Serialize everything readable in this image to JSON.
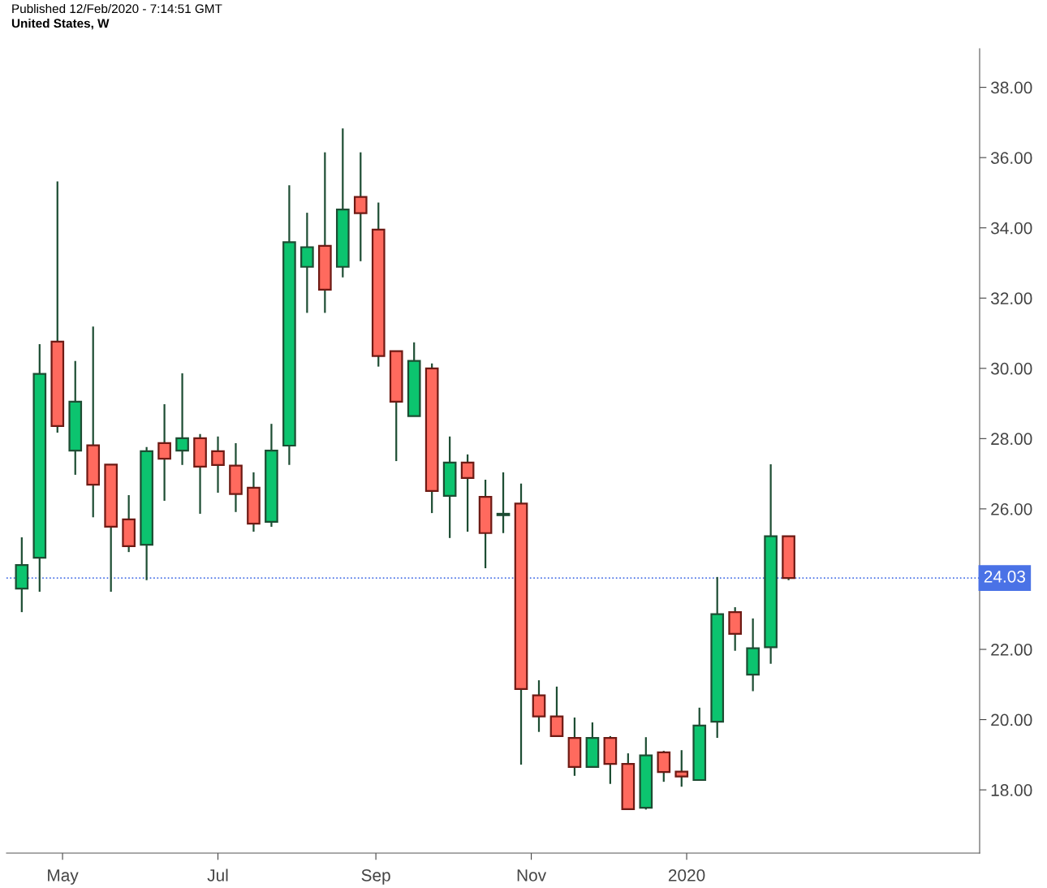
{
  "chart_data": {
    "type": "candlestick",
    "title": "United States, W",
    "annotations": [
      "Published 12/Feb/2020 - 7:14:51 GMT"
    ],
    "x": [
      "2019-04-15",
      "2019-04-22",
      "2019-04-29",
      "2019-05-06",
      "2019-05-13",
      "2019-05-20",
      "2019-05-27",
      "2019-06-03",
      "2019-06-10",
      "2019-06-17",
      "2019-06-24",
      "2019-07-01",
      "2019-07-08",
      "2019-07-15",
      "2019-07-22",
      "2019-07-29",
      "2019-08-05",
      "2019-08-12",
      "2019-08-19",
      "2019-08-26",
      "2019-09-02",
      "2019-09-09",
      "2019-09-16",
      "2019-09-23",
      "2019-09-30",
      "2019-10-07",
      "2019-10-14",
      "2019-10-21",
      "2019-10-28",
      "2019-11-04",
      "2019-11-11",
      "2019-11-18",
      "2019-11-25",
      "2019-12-02",
      "2019-12-09",
      "2019-12-16",
      "2019-12-23",
      "2019-12-30",
      "2020-01-06",
      "2020-01-13",
      "2020-01-20",
      "2020-01-27",
      "2020-02-03",
      "2020-02-10"
    ],
    "ohlc": [
      [
        23.73,
        25.19,
        23.06,
        24.4
      ],
      [
        24.61,
        30.69,
        23.64,
        29.84
      ],
      [
        30.76,
        35.32,
        28.17,
        28.36
      ],
      [
        27.66,
        30.21,
        26.97,
        29.05
      ],
      [
        27.81,
        31.19,
        25.76,
        26.69
      ],
      [
        27.26,
        27.26,
        23.64,
        25.49
      ],
      [
        25.7,
        26.39,
        24.77,
        24.94
      ],
      [
        24.98,
        27.76,
        23.97,
        27.64
      ],
      [
        27.87,
        28.98,
        26.23,
        27.43
      ],
      [
        27.66,
        29.86,
        27.25,
        28.01
      ],
      [
        28.01,
        28.13,
        25.86,
        27.2
      ],
      [
        27.64,
        28.06,
        26.46,
        27.25
      ],
      [
        27.23,
        27.87,
        25.91,
        26.42
      ],
      [
        26.6,
        27.04,
        25.35,
        25.58
      ],
      [
        25.63,
        28.42,
        25.49,
        27.66
      ],
      [
        27.8,
        35.21,
        27.25,
        33.59
      ],
      [
        32.89,
        34.43,
        31.58,
        33.45
      ],
      [
        33.49,
        36.15,
        31.58,
        32.24
      ],
      [
        32.89,
        36.83,
        32.59,
        34.52
      ],
      [
        34.88,
        36.15,
        33.05,
        34.42
      ],
      [
        33.95,
        34.72,
        30.05,
        30.35
      ],
      [
        30.49,
        30.49,
        27.36,
        29.05
      ],
      [
        28.64,
        30.74,
        28.64,
        30.21
      ],
      [
        30.0,
        30.14,
        25.88,
        26.51
      ],
      [
        26.37,
        28.06,
        25.17,
        27.32
      ],
      [
        27.32,
        27.55,
        25.35,
        26.88
      ],
      [
        26.34,
        26.83,
        24.31,
        25.31
      ],
      [
        25.82,
        27.04,
        25.31,
        25.86
      ],
      [
        26.15,
        26.72,
        18.72,
        20.87
      ],
      [
        20.69,
        21.12,
        19.65,
        20.09
      ],
      [
        20.09,
        20.94,
        19.53,
        19.53
      ],
      [
        19.48,
        20.06,
        18.4,
        18.65
      ],
      [
        18.65,
        19.92,
        18.65,
        19.48
      ],
      [
        19.48,
        19.53,
        18.17,
        18.74
      ],
      [
        18.74,
        19.04,
        17.45,
        17.45
      ],
      [
        17.49,
        19.5,
        17.44,
        18.98
      ],
      [
        19.07,
        19.11,
        18.23,
        18.51
      ],
      [
        18.52,
        19.13,
        18.09,
        18.38
      ],
      [
        18.28,
        20.34,
        18.28,
        19.83
      ],
      [
        19.94,
        24.06,
        19.48,
        23.0
      ],
      [
        23.06,
        23.2,
        21.96,
        22.44
      ],
      [
        21.28,
        22.88,
        20.81,
        22.03
      ],
      [
        22.06,
        27.27,
        21.59,
        25.22
      ],
      [
        25.22,
        25.22,
        23.97,
        24.03
      ]
    ],
    "colors": [
      "#0cc46f",
      "#0cc46f",
      "#ff6a5e",
      "#0cc46f",
      "#ff6a5e",
      "#ff6a5e",
      "#ff6a5e",
      "#0cc46f",
      "#ff6a5e",
      "#0cc46f",
      "#ff6a5e",
      "#ff6a5e",
      "#ff6a5e",
      "#ff6a5e",
      "#0cc46f",
      "#0cc46f",
      "#0cc46f",
      "#ff6a5e",
      "#0cc46f",
      "#ff6a5e",
      "#ff6a5e",
      "#ff6a5e",
      "#0cc46f",
      "#ff6a5e",
      "#0cc46f",
      "#ff6a5e",
      "#ff6a5e",
      "#0cc46f",
      "#ff6a5e",
      "#ff6a5e",
      "#ff6a5e",
      "#ff6a5e",
      "#0cc46f",
      "#ff6a5e",
      "#ff6a5e",
      "#0cc46f",
      "#ff6a5e",
      "#ff6a5e",
      "#0cc46f",
      "#0cc46f",
      "#ff6a5e",
      "#0cc46f",
      "#0cc46f",
      "#ff6a5e"
    ],
    "xlim": [
      "2019-04-09",
      "2020-04-25"
    ],
    "xticks": [
      {
        "value": "2019-05-01",
        "label": "May"
      },
      {
        "value": "2019-07-01",
        "label": "Jul"
      },
      {
        "value": "2019-09-01",
        "label": "Sep"
      },
      {
        "value": "2019-11-01",
        "label": "Nov"
      },
      {
        "value": "2020-01-01",
        "label": "2020"
      }
    ],
    "ylim": [
      16.2,
      39.1
    ],
    "yticks": [
      {
        "value": 18,
        "label": "18.00"
      },
      {
        "value": 20,
        "label": "20.00"
      },
      {
        "value": 22,
        "label": "22.00"
      },
      {
        "value": 24,
        "label": null
      },
      {
        "value": 26,
        "label": "26.00"
      },
      {
        "value": 28,
        "label": "28.00"
      },
      {
        "value": 30,
        "label": "30.00"
      },
      {
        "value": 32,
        "label": "32.00"
      },
      {
        "value": 34,
        "label": "34.00"
      },
      {
        "value": 36,
        "label": "36.00"
      },
      {
        "value": 38,
        "label": "38.00"
      }
    ],
    "ref_lines": [
      {
        "axis": "y",
        "value": 24.03,
        "label": "24.03",
        "color": "#4a72e6",
        "line_style": "dotted"
      }
    ],
    "grid": false
  }
}
